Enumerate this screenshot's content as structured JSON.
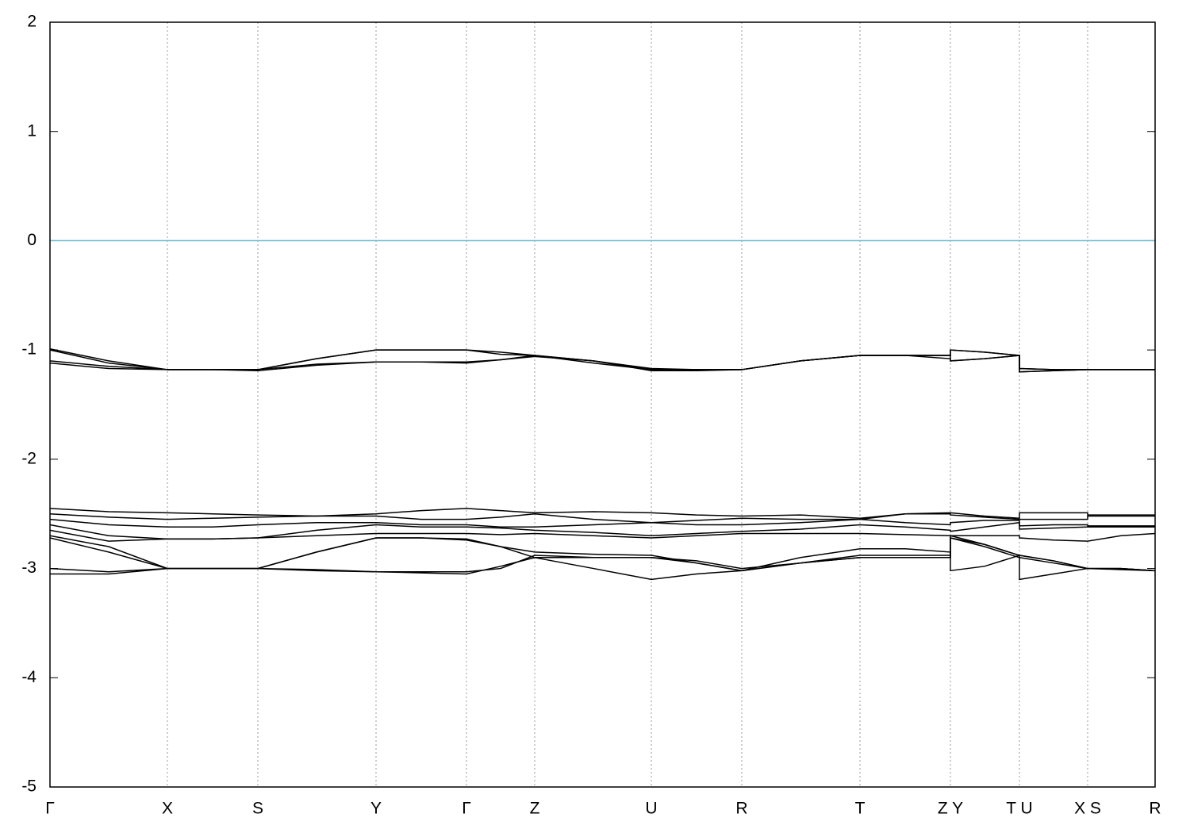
{
  "chart_data": {
    "type": "line",
    "xlim": [
      0,
      13.93
    ],
    "ylim": [
      -5,
      2
    ],
    "yticks": [
      -5,
      -4,
      -3,
      -2,
      -1,
      0,
      1,
      2
    ],
    "xticks": [
      {
        "value": 0,
        "label": "Γ"
      },
      {
        "value": 1.48,
        "label": "X"
      },
      {
        "value": 2.62,
        "label": "S"
      },
      {
        "value": 4.11,
        "label": "Y"
      },
      {
        "value": 5.25,
        "label": "Γ"
      },
      {
        "value": 6.11,
        "label": "Z"
      },
      {
        "value": 7.58,
        "label": "U"
      },
      {
        "value": 8.72,
        "label": "R"
      },
      {
        "value": 10.21,
        "label": "T"
      },
      {
        "value": 11.35,
        "label": "Z Y"
      },
      {
        "value": 12.22,
        "label": "T U"
      },
      {
        "value": 13.08,
        "label": "X S"
      },
      {
        "value": 13.93,
        "label": "R"
      }
    ],
    "grid": true,
    "hline": {
      "value": 0,
      "color": "#5fb8c8"
    },
    "x": [
      0,
      0.74,
      1.48,
      2.05,
      2.62,
      3.36,
      4.11,
      4.68,
      5.25,
      5.68,
      6.11,
      6.85,
      7.58,
      8.15,
      8.72,
      9.46,
      10.21,
      10.78,
      11.35,
      11.35,
      11.78,
      12.22,
      12.22,
      12.65,
      13.08,
      13.08,
      13.5,
      13.93
    ],
    "series": [
      {
        "color": "#000000",
        "values": [
          -0.99,
          -1.1,
          -1.18,
          -1.18,
          -1.18,
          -1.08,
          -1.0,
          -1.0,
          -1.0,
          -1.02,
          -1.05,
          -1.1,
          -1.18,
          -1.18,
          -1.18,
          -1.1,
          -1.05,
          -1.05,
          -1.05,
          -1.0,
          -1.02,
          -1.05,
          -1.17,
          -1.18,
          -1.18,
          -1.18,
          -1.18,
          -1.18
        ]
      },
      {
        "color": "#000000",
        "values": [
          -1.0,
          -1.12,
          -1.18,
          -1.18,
          -1.18,
          -1.08,
          -1.0,
          -1.0,
          -1.0,
          -1.04,
          -1.05,
          -1.12,
          -1.18,
          -1.18,
          -1.18,
          -1.1,
          -1.05,
          -1.05,
          -1.05,
          -1.0,
          -1.02,
          -1.05,
          -1.2,
          -1.19,
          -1.18,
          -1.18,
          -1.18,
          -1.18
        ]
      },
      {
        "color": "#000000",
        "values": [
          -1.1,
          -1.15,
          -1.18,
          -1.18,
          -1.19,
          -1.14,
          -1.11,
          -1.11,
          -1.12,
          -1.09,
          -1.06,
          -1.1,
          -1.17,
          -1.18,
          -1.18,
          -1.1,
          -1.05,
          -1.05,
          -1.08,
          -1.1,
          -1.08,
          -1.05,
          -1.17,
          -1.18,
          -1.18,
          -1.18,
          -1.18,
          -1.18
        ]
      },
      {
        "color": "#000000",
        "values": [
          -1.12,
          -1.17,
          -1.18,
          -1.18,
          -1.18,
          -1.13,
          -1.11,
          -1.11,
          -1.11,
          -1.09,
          -1.05,
          -1.1,
          -1.19,
          -1.19,
          -1.18,
          -1.1,
          -1.05,
          -1.05,
          -1.05,
          -1.1,
          -1.08,
          -1.05,
          -1.2,
          -1.19,
          -1.18,
          -1.18,
          -1.18,
          -1.18
        ]
      },
      {
        "color": "#000000",
        "values": [
          -2.45,
          -2.48,
          -2.49,
          -2.5,
          -2.51,
          -2.52,
          -2.5,
          -2.47,
          -2.45,
          -2.47,
          -2.49,
          -2.48,
          -2.49,
          -2.51,
          -2.52,
          -2.51,
          -2.54,
          -2.5,
          -2.49,
          -2.49,
          -2.52,
          -2.54,
          -2.49,
          -2.49,
          -2.49,
          -2.51,
          -2.51,
          -2.51
        ]
      },
      {
        "color": "#000000",
        "values": [
          -2.5,
          -2.53,
          -2.55,
          -2.54,
          -2.53,
          -2.52,
          -2.52,
          -2.55,
          -2.55,
          -2.53,
          -2.5,
          -2.55,
          -2.58,
          -2.56,
          -2.54,
          -2.55,
          -2.55,
          -2.5,
          -2.5,
          -2.51,
          -2.53,
          -2.55,
          -2.55,
          -2.55,
          -2.55,
          -2.52,
          -2.52,
          -2.52
        ]
      },
      {
        "color": "#000000",
        "values": [
          -2.55,
          -2.6,
          -2.62,
          -2.62,
          -2.6,
          -2.58,
          -2.58,
          -2.6,
          -2.6,
          -2.62,
          -2.62,
          -2.6,
          -2.58,
          -2.6,
          -2.6,
          -2.58,
          -2.55,
          -2.58,
          -2.6,
          -2.58,
          -2.56,
          -2.56,
          -2.61,
          -2.6,
          -2.6,
          -2.61,
          -2.61,
          -2.61
        ]
      },
      {
        "color": "#000000",
        "values": [
          -2.6,
          -2.7,
          -2.73,
          -2.73,
          -2.72,
          -2.65,
          -2.6,
          -2.62,
          -2.62,
          -2.63,
          -2.65,
          -2.67,
          -2.7,
          -2.68,
          -2.66,
          -2.64,
          -2.6,
          -2.62,
          -2.65,
          -2.66,
          -2.62,
          -2.58,
          -2.64,
          -2.63,
          -2.62,
          -2.62,
          -2.62,
          -2.62
        ]
      },
      {
        "color": "#000000",
        "values": [
          -2.65,
          -2.75,
          -2.73,
          -2.73,
          -2.72,
          -2.7,
          -2.68,
          -2.68,
          -2.68,
          -2.69,
          -2.68,
          -2.7,
          -2.72,
          -2.7,
          -2.68,
          -2.68,
          -2.68,
          -2.69,
          -2.7,
          -2.7,
          -2.7,
          -2.7,
          -2.72,
          -2.74,
          -2.75,
          -2.75,
          -2.7,
          -2.68
        ]
      },
      {
        "color": "#000000",
        "values": [
          -2.7,
          -2.8,
          -3.0,
          -3.0,
          -3.0,
          -2.85,
          -2.72,
          -2.72,
          -2.73,
          -2.8,
          -2.85,
          -2.87,
          -2.88,
          -2.95,
          -3.02,
          -2.95,
          -2.88,
          -2.88,
          -2.88,
          -2.7,
          -2.78,
          -2.88,
          -2.88,
          -2.93,
          -3.0,
          -3.0,
          -3.0,
          -3.02
        ]
      },
      {
        "color": "#000000",
        "values": [
          -2.72,
          -2.85,
          -3.0,
          -3.0,
          -3.0,
          -2.85,
          -2.72,
          -2.72,
          -2.74,
          -2.8,
          -2.9,
          -3.0,
          -3.1,
          -3.05,
          -3.02,
          -2.9,
          -2.82,
          -2.82,
          -2.85,
          -3.02,
          -2.98,
          -2.88,
          -3.1,
          -3.05,
          -3.0,
          -3.0,
          -3.0,
          -3.02
        ]
      },
      {
        "color": "#000000",
        "values": [
          -3.0,
          -3.03,
          -3.0,
          -3.0,
          -3.0,
          -3.01,
          -3.03,
          -3.03,
          -3.03,
          -3.0,
          -2.88,
          -2.9,
          -2.9,
          -2.93,
          -3.0,
          -2.95,
          -2.9,
          -2.9,
          -2.9,
          -2.72,
          -2.78,
          -2.88,
          -2.88,
          -2.93,
          -3.0,
          -3.0,
          -3.0,
          -3.02
        ]
      },
      {
        "color": "#000000",
        "values": [
          -3.05,
          -3.05,
          -3.0,
          -3.0,
          -3.0,
          -3.02,
          -3.03,
          -3.04,
          -3.05,
          -2.98,
          -2.9,
          -2.9,
          -2.9,
          -2.95,
          -3.02,
          -2.95,
          -2.9,
          -2.9,
          -2.9,
          -2.72,
          -2.8,
          -2.9,
          -2.9,
          -2.95,
          -3.0,
          -3.0,
          -3.01,
          -3.02
        ]
      }
    ]
  }
}
